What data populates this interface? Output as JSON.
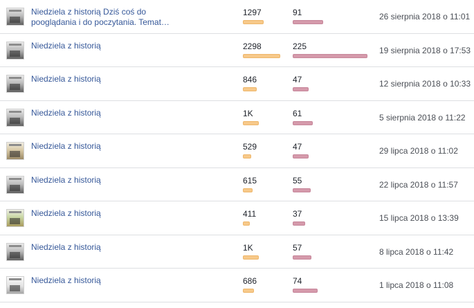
{
  "colors": {
    "link": "#365899",
    "reach_bar": "#f7c98a",
    "engagement_bar": "#d59aab",
    "divider": "#dddfe2"
  },
  "posts": [
    {
      "title": "Niedziela z historią Dziś coś do pooglądania i do poczytania. Temat…",
      "reach": "1297",
      "reach_value": 1297,
      "engagement": "91",
      "engagement_value": 91,
      "date": "26 sierpnia 2018 o 11:01",
      "thumb": "photo-thumbnail"
    },
    {
      "title": "Niedziela z historią",
      "reach": "2298",
      "reach_value": 2298,
      "engagement": "225",
      "engagement_value": 225,
      "date": "19 sierpnia 2018 o 17:53",
      "thumb": "photo-thumbnail"
    },
    {
      "title": "Niedziela z historią",
      "reach": "846",
      "reach_value": 846,
      "engagement": "47",
      "engagement_value": 47,
      "date": "12 sierpnia 2018 o 10:33",
      "thumb": "photo-thumbnail"
    },
    {
      "title": "Niedziela z historią",
      "reach": "1K",
      "reach_value": 1000,
      "engagement": "61",
      "engagement_value": 61,
      "date": "5 sierpnia 2018 o 11:22",
      "thumb": "photo-thumbnail"
    },
    {
      "title": "Niedziela z historią",
      "reach": "529",
      "reach_value": 529,
      "engagement": "47",
      "engagement_value": 47,
      "date": "29 lipca 2018 o 11:02",
      "thumb": "photo-thumbnail"
    },
    {
      "title": "Niedziela z historią",
      "reach": "615",
      "reach_value": 615,
      "engagement": "55",
      "engagement_value": 55,
      "date": "22 lipca 2018 o 11:57",
      "thumb": "photo-thumbnail"
    },
    {
      "title": "Niedziela z historią",
      "reach": "411",
      "reach_value": 411,
      "engagement": "37",
      "engagement_value": 37,
      "date": "15 lipca 2018 o 13:39",
      "thumb": "photo-thumbnail"
    },
    {
      "title": "Niedziela z historią",
      "reach": "1K",
      "reach_value": 1000,
      "engagement": "57",
      "engagement_value": 57,
      "date": "8 lipca 2018 o 11:42",
      "thumb": "photo-thumbnail"
    },
    {
      "title": "Niedziela z historią",
      "reach": "686",
      "reach_value": 686,
      "engagement": "74",
      "engagement_value": 74,
      "date": "1 lipca 2018 o 11:08",
      "thumb": "photo-thumbnail"
    }
  ]
}
